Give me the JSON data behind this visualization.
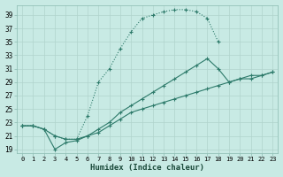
{
  "title": "",
  "xlabel": "Humidex (Indice chaleur)",
  "bg_color": "#c8eae4",
  "grid_color": "#b0d4cc",
  "line_color": "#2d7a6a",
  "xlim": [
    -0.5,
    23.5
  ],
  "ylim": [
    18.5,
    40.5
  ],
  "xticks": [
    0,
    1,
    2,
    3,
    4,
    5,
    6,
    7,
    8,
    9,
    10,
    11,
    12,
    13,
    14,
    15,
    16,
    17,
    18,
    19,
    20,
    21,
    22,
    23
  ],
  "yticks": [
    19,
    21,
    23,
    25,
    27,
    29,
    31,
    33,
    35,
    37,
    39
  ],
  "curve1_x": [
    0,
    1,
    2,
    3,
    4,
    5,
    6,
    7,
    8,
    9,
    10,
    11,
    12,
    13,
    14,
    15,
    16,
    17,
    18
  ],
  "curve1_y": [
    22.5,
    22.5,
    22.0,
    21.0,
    20.5,
    20.5,
    24.0,
    29.0,
    31.0,
    34.0,
    36.5,
    38.5,
    39.0,
    39.5,
    39.8,
    39.8,
    39.5,
    38.5,
    35.0
  ],
  "curve2_x": [
    0,
    1,
    2,
    3,
    4,
    5,
    6,
    7,
    8,
    9,
    10,
    11,
    12,
    13,
    14,
    15,
    16,
    17,
    18,
    19,
    20,
    21,
    22,
    23
  ],
  "curve2_y": [
    22.5,
    22.5,
    22.0,
    21.0,
    20.5,
    20.5,
    21.0,
    22.0,
    23.0,
    24.5,
    25.5,
    26.5,
    27.5,
    28.5,
    29.5,
    30.5,
    31.5,
    32.5,
    31.0,
    29.0,
    29.5,
    30.0,
    30.0,
    30.5
  ],
  "curve3_x": [
    0,
    1,
    2,
    3,
    4,
    5,
    6,
    7,
    8,
    9,
    10,
    11,
    12,
    13,
    14,
    15,
    16,
    17,
    18,
    19,
    20,
    21,
    22,
    23
  ],
  "curve3_y": [
    22.5,
    22.5,
    22.0,
    19.0,
    20.0,
    20.3,
    21.0,
    21.5,
    22.5,
    23.5,
    24.5,
    25.0,
    25.5,
    26.0,
    26.5,
    27.0,
    27.5,
    28.0,
    28.5,
    29.0,
    29.5,
    29.5,
    30.0,
    30.5
  ]
}
